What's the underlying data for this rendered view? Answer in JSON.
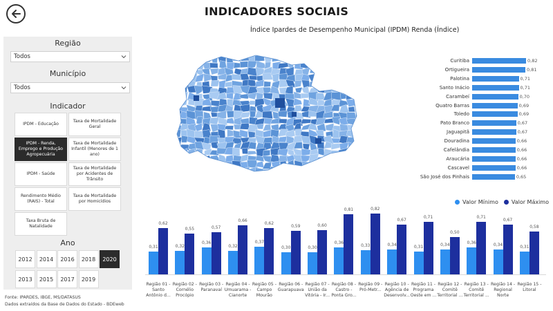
{
  "page": {
    "title": "INDICADORES SOCIAIS"
  },
  "filters": {
    "regiao": {
      "label": "Região",
      "value": "Todos"
    },
    "municipio": {
      "label": "Município",
      "value": "Todos"
    },
    "indicador": {
      "label": "Indicador",
      "options": [
        {
          "label": "IPDM - Educação",
          "selected": false
        },
        {
          "label": "Taxa de Mortalidade Geral",
          "selected": false
        },
        {
          "label": "IPDM - Renda, Emprego e Produção Agropecuária",
          "selected": true
        },
        {
          "label": "Taxa de Mortalidade Infantil (Menores de 1 ano)",
          "selected": false
        },
        {
          "label": "IPDM - Saúde",
          "selected": false
        },
        {
          "label": "Taxa de Mortalidade por Acidentes de Trânsito",
          "selected": false
        },
        {
          "label": "Rendimento Médio (RAIS) - Total",
          "selected": false
        },
        {
          "label": "Taxa de Mortalidade por Homicídios",
          "selected": false
        },
        {
          "label": "Taxa Bruta de Natalidade",
          "selected": false
        }
      ]
    },
    "ano": {
      "label": "Ano",
      "options": [
        "2012",
        "2014",
        "2016",
        "2018",
        "2020",
        "2013",
        "2015",
        "2017",
        "2019"
      ],
      "selected": "2020"
    }
  },
  "source": {
    "line1": "Fonte: IPARDES, IBGE, MS/DATASUS",
    "line2": "Dados extraídos da Base de Dados do Estado - BDEweb"
  },
  "colors": {
    "accent": "#3a8be0",
    "dark_blue": "#1d2f9e",
    "light_blue": "#2e8ff0",
    "selected": "#2b2b2b"
  },
  "chart_data": [
    {
      "type": "bar",
      "orientation": "horizontal",
      "title": "Índice Ipardes de Desempenho Municipal (IPDM) Renda (Índice)",
      "categories": [
        "Curitiba",
        "Ortigueira",
        "Palotina",
        "Santo Inácio",
        "Carambeí",
        "Quatro Barras",
        "Toledo",
        "Pato Branco",
        "Jaguapitã",
        "Douradina",
        "Cafelândia",
        "Araucária",
        "Cascavel",
        "São José dos Pinhais"
      ],
      "values": [
        0.82,
        0.81,
        0.71,
        0.71,
        0.7,
        0.69,
        0.69,
        0.67,
        0.67,
        0.66,
        0.66,
        0.66,
        0.66,
        0.65
      ],
      "value_labels": [
        "0,82",
        "0,81",
        "0,71",
        "0,71",
        "0,70",
        "0,69",
        "0,69",
        "0,67",
        "0,67",
        "0,66",
        "0,66",
        "0,66",
        "0,66",
        "0,65"
      ]
    },
    {
      "type": "bar",
      "orientation": "vertical",
      "legend": [
        "Valor Mínimo",
        "Valor Máximo"
      ],
      "legend_position": "top-right",
      "categories": [
        "Região 01 - Santo Antônio d...",
        "Região 02 - Cornélio Procópio",
        "Região 03 - Paranavaí",
        "Região 04 - Umuarama - Cianorte",
        "Região 05 - Campo Mourão",
        "Região 06 - Guarapuava",
        "Região 07 - União da Vitória - Ir...",
        "Região 08 - Castro - Ponta Gro...",
        "Região 09 - Pró-Metr...",
        "Região 10 - Agência de Desenvolv...",
        "Região 11 - Programa Oeste em ...",
        "Região 12 - Comitê Territorial ...",
        "Região 13 - Comitê Territorial ...",
        "Região 14 - Regional Norte",
        "Região 15 - Litoral"
      ],
      "series": [
        {
          "name": "Valor Mínimo",
          "values": [
            0.31,
            0.32,
            0.36,
            0.32,
            0.37,
            0.3,
            0.3,
            0.36,
            0.33,
            0.34,
            0.31,
            0.34,
            0.36,
            0.34,
            0.31
          ],
          "labels": [
            "0,31",
            "0,32",
            "0,36",
            "0,32",
            "0,37",
            "0,30",
            "0,30",
            "0,36",
            "0,33",
            "0,34",
            "0,31",
            "0,34",
            "0,36",
            "0,34",
            "0,31"
          ]
        },
        {
          "name": "Valor Máximo",
          "values": [
            0.62,
            0.55,
            0.57,
            0.66,
            0.62,
            0.59,
            0.6,
            0.81,
            0.82,
            0.67,
            0.71,
            0.5,
            0.71,
            0.67,
            0.58
          ],
          "labels": [
            "0,62",
            "0,55",
            "0,57",
            "0,66",
            "0,62",
            "0,59",
            "0,60",
            "0,81",
            "0,82",
            "0,67",
            "0,71",
            "0,50",
            "0,71",
            "0,67",
            "0,58"
          ]
        }
      ]
    }
  ]
}
